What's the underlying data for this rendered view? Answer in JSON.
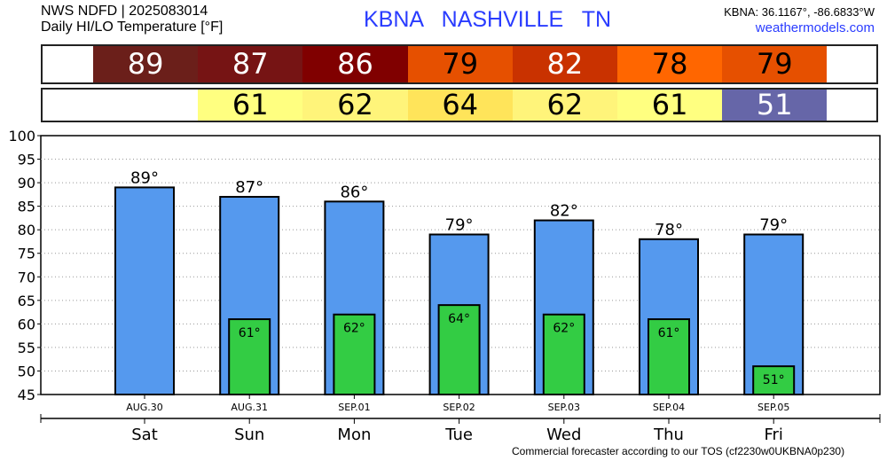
{
  "header": {
    "line1": "NWS NDFD | 2025083014",
    "line2": "Daily HI/LO Temperature [°F]",
    "location": "KBNA  NASHVILLE     TN",
    "coords": "KBNA: 36.1167°, -86.6833°W",
    "site": "weathermodels.com"
  },
  "footer": "Commercial forecaster according to our TOS (cf2230w0UKBNA0p230)",
  "hi_row": [
    {
      "v": "89",
      "bg": "#6b1f1a",
      "fg": "#fff"
    },
    {
      "v": "87",
      "bg": "#761414",
      "fg": "#fff"
    },
    {
      "v": "86",
      "bg": "#800000",
      "fg": "#fff"
    },
    {
      "v": "79",
      "bg": "#e65000",
      "fg": "#000"
    },
    {
      "v": "82",
      "bg": "#c93200",
      "fg": "#fff"
    },
    {
      "v": "78",
      "bg": "#ff6600",
      "fg": "#000"
    },
    {
      "v": "79",
      "bg": "#e65000",
      "fg": "#000"
    }
  ],
  "lo_row": [
    null,
    {
      "v": "61",
      "bg": "#ffff80",
      "fg": "#000"
    },
    {
      "v": "62",
      "bg": "#fff47a",
      "fg": "#000"
    },
    {
      "v": "64",
      "bg": "#ffe45a",
      "fg": "#000"
    },
    {
      "v": "62",
      "bg": "#fff47a",
      "fg": "#000"
    },
    {
      "v": "61",
      "bg": "#ffff80",
      "fg": "#000"
    },
    {
      "v": "51",
      "bg": "#6666a8",
      "fg": "#fff"
    }
  ],
  "chart_data": {
    "type": "bar",
    "categories": [
      "Sat",
      "Sun",
      "Mon",
      "Tue",
      "Wed",
      "Thu",
      "Fri"
    ],
    "dates": [
      "AUG.30",
      "AUG.31",
      "SEP.01",
      "SEP.02",
      "SEP.03",
      "SEP.04",
      "SEP.05"
    ],
    "series": [
      {
        "name": "High",
        "color": "#5599ee",
        "values": [
          89,
          87,
          86,
          79,
          82,
          78,
          79
        ]
      },
      {
        "name": "Low",
        "color": "#33cc44",
        "values": [
          null,
          61,
          62,
          64,
          62,
          61,
          51
        ]
      }
    ],
    "ylim": [
      45,
      100
    ],
    "yticks": [
      45,
      50,
      55,
      60,
      65,
      70,
      75,
      80,
      85,
      90,
      95,
      100
    ],
    "grid": true
  }
}
